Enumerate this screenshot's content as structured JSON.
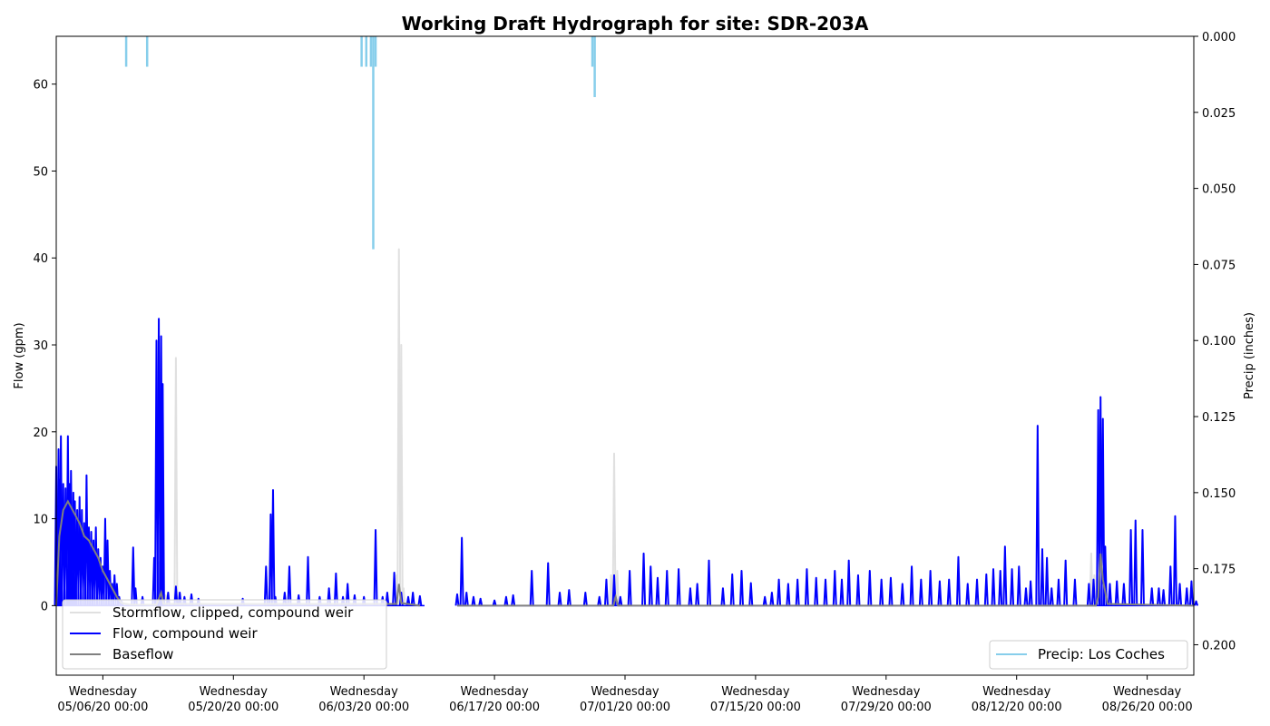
{
  "chart_data": {
    "type": "line",
    "title": "Working Draft Hydrograph for site: SDR-203A",
    "ylabel": "Flow (gpm)",
    "y2label": "Precip (inches)",
    "xlim": [
      "2020-05-01",
      "2020-08-31"
    ],
    "ylim": [
      -8,
      65.5
    ],
    "y2lim": [
      0.21,
      0.0
    ],
    "y2_inverted": true,
    "x_ticks": [
      {
        "date": "2020-05-06",
        "line1": "Wednesday",
        "line2": "05/06/20 00:00"
      },
      {
        "date": "2020-05-20",
        "line1": "Wednesday",
        "line2": "05/20/20 00:00"
      },
      {
        "date": "2020-06-03",
        "line1": "Wednesday",
        "line2": "06/03/20 00:00"
      },
      {
        "date": "2020-06-17",
        "line1": "Wednesday",
        "line2": "06/17/20 00:00"
      },
      {
        "date": "2020-07-01",
        "line1": "Wednesday",
        "line2": "07/01/20 00:00"
      },
      {
        "date": "2020-07-15",
        "line1": "Wednesday",
        "line2": "07/15/20 00:00"
      },
      {
        "date": "2020-07-29",
        "line1": "Wednesday",
        "line2": "07/29/20 00:00"
      },
      {
        "date": "2020-08-12",
        "line1": "Wednesday",
        "line2": "08/12/20 00:00"
      },
      {
        "date": "2020-08-26",
        "line1": "Wednesday",
        "line2": "08/26/20 00:00"
      }
    ],
    "y_ticks": [
      "0",
      "10",
      "20",
      "30",
      "40",
      "50",
      "60"
    ],
    "y2_ticks": [
      "0.000",
      "0.025",
      "0.050",
      "0.075",
      "0.100",
      "0.125",
      "0.150",
      "0.175",
      "0.200"
    ],
    "grid": false,
    "legend_left": {
      "placement": "lower-left",
      "entries": [
        "Stormflow, clipped, compound weir",
        "Flow, compound weir",
        "Baseflow"
      ]
    },
    "legend_right": {
      "placement": "lower-right",
      "entries": [
        "Precip: Los Coches"
      ]
    },
    "series": [
      {
        "name": "Stormflow, clipped, compound weir",
        "color": "#e0e0e0",
        "axis": "left",
        "spikes": [
          [
            "2020-05-11T12:00",
            0.5
          ],
          [
            "2020-05-12T00:00",
            5.0
          ],
          [
            "2020-05-12T06:00",
            28.5
          ],
          [
            "2020-05-12T10:00",
            25.0
          ],
          [
            "2020-05-12T18:00",
            1.2
          ],
          [
            "2020-05-13T20:00",
            28.5
          ],
          [
            "2020-05-14T04:00",
            1.5
          ],
          [
            "2020-06-06T12:00",
            3.5
          ],
          [
            "2020-06-06T18:00",
            41.0
          ],
          [
            "2020-06-07T00:00",
            30.0
          ],
          [
            "2020-06-07T06:00",
            2.0
          ],
          [
            "2020-06-29T12:00",
            3.5
          ],
          [
            "2020-06-29T20:00",
            17.5
          ],
          [
            "2020-06-30T04:00",
            4.0
          ],
          [
            "2020-08-19T18:00",
            2.0
          ],
          [
            "2020-08-20T00:00",
            6.0
          ],
          [
            "2020-08-20T08:00",
            3.5
          ]
        ]
      },
      {
        "name": "Flow, compound weir",
        "color": "#0000ff",
        "axis": "left",
        "gaps": [
          [
            "2020-06-09T12:00",
            "2020-06-13T00:00"
          ]
        ],
        "spikes": [
          [
            "2020-05-01T00:00",
            16.0
          ],
          [
            "2020-05-01T06:00",
            18.0
          ],
          [
            "2020-05-01T08:00",
            14.5
          ],
          [
            "2020-05-01T12:00",
            19.5
          ],
          [
            "2020-05-01T18:00",
            14.0
          ],
          [
            "2020-05-02T00:00",
            13.5
          ],
          [
            "2020-05-02T06:00",
            19.5
          ],
          [
            "2020-05-02T10:00",
            14.0
          ],
          [
            "2020-05-02T14:00",
            15.5
          ],
          [
            "2020-05-02T20:00",
            13.0
          ],
          [
            "2020-05-03T00:00",
            12.0
          ],
          [
            "2020-05-03T06:00",
            11.0
          ],
          [
            "2020-05-03T12:00",
            12.5
          ],
          [
            "2020-05-03T18:00",
            11.0
          ],
          [
            "2020-05-04T00:00",
            9.5
          ],
          [
            "2020-05-04T06:00",
            15.0
          ],
          [
            "2020-05-04T12:00",
            9.0
          ],
          [
            "2020-05-04T18:00",
            8.5
          ],
          [
            "2020-05-05T00:00",
            7.5
          ],
          [
            "2020-05-05T06:00",
            9.0
          ],
          [
            "2020-05-05T12:00",
            6.5
          ],
          [
            "2020-05-05T18:00",
            5.5
          ],
          [
            "2020-05-06T00:00",
            4.5
          ],
          [
            "2020-05-06T06:00",
            10.0
          ],
          [
            "2020-05-06T12:00",
            7.5
          ],
          [
            "2020-05-06T18:00",
            4.0
          ],
          [
            "2020-05-07T00:00",
            2.5
          ],
          [
            "2020-05-07T06:00",
            3.5
          ],
          [
            "2020-05-07T12:00",
            2.5
          ],
          [
            "2020-05-07T18:00",
            1.0
          ],
          [
            "2020-05-08T00:00",
            0.5
          ],
          [
            "2020-05-09T06:00",
            6.7
          ],
          [
            "2020-05-09T12:00",
            2.0
          ],
          [
            "2020-05-10T06:00",
            1.0
          ],
          [
            "2020-05-11T12:00",
            5.5
          ],
          [
            "2020-05-11T18:00",
            30.5
          ],
          [
            "2020-05-12T00:00",
            33.0
          ],
          [
            "2020-05-12T06:00",
            31.0
          ],
          [
            "2020-05-12T10:00",
            25.5
          ],
          [
            "2020-05-13T00:00",
            1.5
          ],
          [
            "2020-05-13T20:00",
            2.2
          ],
          [
            "2020-05-14T06:00",
            1.5
          ],
          [
            "2020-05-14T18:00",
            1.0
          ],
          [
            "2020-05-15T12:00",
            1.3
          ],
          [
            "2020-05-16T06:00",
            0.8
          ],
          [
            "2020-05-21T00:00",
            0.8
          ],
          [
            "2020-05-23T12:00",
            4.5
          ],
          [
            "2020-05-24T00:00",
            10.5
          ],
          [
            "2020-05-24T06:00",
            13.3
          ],
          [
            "2020-05-24T12:00",
            1.0
          ],
          [
            "2020-05-25T12:00",
            1.5
          ],
          [
            "2020-05-26T00:00",
            4.5
          ],
          [
            "2020-05-27T00:00",
            1.2
          ],
          [
            "2020-05-28T00:00",
            5.6
          ],
          [
            "2020-05-29T06:00",
            1.0
          ],
          [
            "2020-05-30T06:00",
            2.0
          ],
          [
            "2020-05-31T00:00",
            3.7
          ],
          [
            "2020-05-31T18:00",
            1.0
          ],
          [
            "2020-06-01T06:00",
            2.5
          ],
          [
            "2020-06-02T00:00",
            1.2
          ],
          [
            "2020-06-03T00:00",
            1.0
          ],
          [
            "2020-06-04T06:00",
            8.7
          ],
          [
            "2020-06-05T00:00",
            1.0
          ],
          [
            "2020-06-05T12:00",
            1.5
          ],
          [
            "2020-06-06T06:00",
            3.8
          ],
          [
            "2020-06-07T00:00",
            1.5
          ],
          [
            "2020-06-07T18:00",
            1.0
          ],
          [
            "2020-06-08T06:00",
            1.5
          ],
          [
            "2020-06-09T00:00",
            1.1
          ],
          [
            "2020-06-13T00:00",
            1.3
          ],
          [
            "2020-06-13T12:00",
            7.8
          ],
          [
            "2020-06-14T00:00",
            1.5
          ],
          [
            "2020-06-14T18:00",
            1.0
          ],
          [
            "2020-06-15T12:00",
            0.8
          ],
          [
            "2020-06-17T00:00",
            0.6
          ],
          [
            "2020-06-18T06:00",
            1.0
          ],
          [
            "2020-06-19T00:00",
            1.2
          ],
          [
            "2020-06-21T00:00",
            4.0
          ],
          [
            "2020-06-22T18:00",
            4.9
          ],
          [
            "2020-06-24T00:00",
            1.5
          ],
          [
            "2020-06-25T00:00",
            1.8
          ],
          [
            "2020-06-26T18:00",
            1.5
          ],
          [
            "2020-06-28T06:00",
            1.0
          ],
          [
            "2020-06-29T00:00",
            3.0
          ],
          [
            "2020-06-29T20:00",
            3.5
          ],
          [
            "2020-06-30T12:00",
            1.0
          ],
          [
            "2020-07-01T12:00",
            4.0
          ],
          [
            "2020-07-03T00:00",
            6.0
          ],
          [
            "2020-07-03T18:00",
            4.5
          ],
          [
            "2020-07-04T12:00",
            3.2
          ],
          [
            "2020-07-05T12:00",
            4.0
          ],
          [
            "2020-07-06T18:00",
            4.2
          ],
          [
            "2020-07-08T00:00",
            2.0
          ],
          [
            "2020-07-08T18:00",
            2.5
          ],
          [
            "2020-07-10T00:00",
            5.2
          ],
          [
            "2020-07-11T12:00",
            2.0
          ],
          [
            "2020-07-12T12:00",
            3.6
          ],
          [
            "2020-07-13T12:00",
            4.0
          ],
          [
            "2020-07-14T12:00",
            2.6
          ],
          [
            "2020-07-16T00:00",
            1.0
          ],
          [
            "2020-07-16T18:00",
            1.5
          ],
          [
            "2020-07-17T12:00",
            3.0
          ],
          [
            "2020-07-18T12:00",
            2.5
          ],
          [
            "2020-07-19T12:00",
            3.0
          ],
          [
            "2020-07-20T12:00",
            4.2
          ],
          [
            "2020-07-21T12:00",
            3.2
          ],
          [
            "2020-07-22T12:00",
            3.0
          ],
          [
            "2020-07-23T12:00",
            4.0
          ],
          [
            "2020-07-24T06:00",
            3.0
          ],
          [
            "2020-07-25T00:00",
            5.2
          ],
          [
            "2020-07-26T00:00",
            3.5
          ],
          [
            "2020-07-27T06:00",
            4.0
          ],
          [
            "2020-07-28T12:00",
            3.0
          ],
          [
            "2020-07-29T12:00",
            3.2
          ],
          [
            "2020-07-30T18:00",
            2.5
          ],
          [
            "2020-07-31T18:00",
            4.5
          ],
          [
            "2020-08-01T18:00",
            3.0
          ],
          [
            "2020-08-02T18:00",
            4.0
          ],
          [
            "2020-08-03T18:00",
            2.8
          ],
          [
            "2020-08-04T18:00",
            3.0
          ],
          [
            "2020-08-05T18:00",
            5.6
          ],
          [
            "2020-08-06T18:00",
            2.5
          ],
          [
            "2020-08-07T18:00",
            3.0
          ],
          [
            "2020-08-08T18:00",
            3.6
          ],
          [
            "2020-08-09T12:00",
            4.2
          ],
          [
            "2020-08-10T06:00",
            4.0
          ],
          [
            "2020-08-10T18:00",
            6.8
          ],
          [
            "2020-08-11T12:00",
            4.2
          ],
          [
            "2020-08-12T06:00",
            4.5
          ],
          [
            "2020-08-13T00:00",
            2.0
          ],
          [
            "2020-08-13T12:00",
            2.8
          ],
          [
            "2020-08-14T06:00",
            20.7
          ],
          [
            "2020-08-14T18:00",
            6.5
          ],
          [
            "2020-08-15T06:00",
            5.5
          ],
          [
            "2020-08-15T18:00",
            2.0
          ],
          [
            "2020-08-16T12:00",
            3.0
          ],
          [
            "2020-08-17T06:00",
            5.2
          ],
          [
            "2020-08-18T06:00",
            3.0
          ],
          [
            "2020-08-19T18:00",
            2.5
          ],
          [
            "2020-08-20T06:00",
            3.0
          ],
          [
            "2020-08-20T18:00",
            22.5
          ],
          [
            "2020-08-21T00:00",
            24.0
          ],
          [
            "2020-08-21T06:00",
            21.5
          ],
          [
            "2020-08-21T12:00",
            6.8
          ],
          [
            "2020-08-22T00:00",
            2.5
          ],
          [
            "2020-08-22T18:00",
            2.8
          ],
          [
            "2020-08-23T12:00",
            2.5
          ],
          [
            "2020-08-24T06:00",
            8.7
          ],
          [
            "2020-08-24T18:00",
            9.8
          ],
          [
            "2020-08-25T12:00",
            8.7
          ],
          [
            "2020-08-26T12:00",
            2.0
          ],
          [
            "2020-08-27T06:00",
            2.0
          ],
          [
            "2020-08-27T18:00",
            1.8
          ],
          [
            "2020-08-28T12:00",
            4.5
          ],
          [
            "2020-08-29T00:00",
            10.3
          ],
          [
            "2020-08-29T12:00",
            2.5
          ],
          [
            "2020-08-30T06:00",
            2.0
          ],
          [
            "2020-08-30T18:00",
            2.8
          ],
          [
            "2020-08-31T06:00",
            0.5
          ]
        ]
      },
      {
        "name": "Baseflow",
        "color": "#808080",
        "axis": "left",
        "gaps": [
          [
            "2020-06-09T12:00",
            "2020-06-13T00:00"
          ]
        ],
        "points": [
          [
            "2020-05-01T00:00",
            0
          ],
          [
            "2020-05-01T08:00",
            8.0
          ],
          [
            "2020-05-01T18:00",
            11.0
          ],
          [
            "2020-05-02T06:00",
            12.0
          ],
          [
            "2020-05-02T12:00",
            11.5
          ],
          [
            "2020-05-03T00:00",
            10.5
          ],
          [
            "2020-05-03T12:00",
            9.5
          ],
          [
            "2020-05-04T00:00",
            8.0
          ],
          [
            "2020-05-04T12:00",
            7.5
          ],
          [
            "2020-05-05T00:00",
            6.5
          ],
          [
            "2020-05-05T12:00",
            5.5
          ],
          [
            "2020-05-06T00:00",
            4.0
          ],
          [
            "2020-05-06T12:00",
            3.0
          ],
          [
            "2020-05-07T00:00",
            2.0
          ],
          [
            "2020-05-07T12:00",
            1.0
          ],
          [
            "2020-05-08T00:00",
            0.3
          ],
          [
            "2020-05-09T00:00",
            0.1
          ],
          [
            "2020-05-11T18:00",
            0.1
          ],
          [
            "2020-05-12T06:00",
            1.5
          ],
          [
            "2020-05-12T12:00",
            0.2
          ],
          [
            "2020-06-06T12:00",
            0.2
          ],
          [
            "2020-06-06T18:00",
            2.5
          ],
          [
            "2020-06-07T00:00",
            0.3
          ],
          [
            "2020-06-09T00:00",
            0.0
          ],
          [
            "2020-06-13T00:00",
            0.0
          ],
          [
            "2020-06-29T18:00",
            0.0
          ],
          [
            "2020-06-30T00:00",
            1.0
          ],
          [
            "2020-06-30T06:00",
            0.0
          ],
          [
            "2020-08-20T12:00",
            0.0
          ],
          [
            "2020-08-20T18:00",
            1.0
          ],
          [
            "2020-08-21T00:00",
            6.0
          ],
          [
            "2020-08-21T06:00",
            3.0
          ],
          [
            "2020-08-21T18:00",
            0.2
          ],
          [
            "2020-08-31T00:00",
            0.0
          ]
        ]
      },
      {
        "name": "Precip: Los Coches",
        "color": "#87ceeb",
        "axis": "right",
        "bars": [
          [
            "2020-05-08T12:00",
            0.01
          ],
          [
            "2020-05-10T18:00",
            0.01
          ],
          [
            "2020-06-02T18:00",
            0.01
          ],
          [
            "2020-06-03T06:00",
            0.01
          ],
          [
            "2020-06-03T18:00",
            0.01
          ],
          [
            "2020-06-04T00:00",
            0.07
          ],
          [
            "2020-06-04T06:00",
            0.01
          ],
          [
            "2020-06-27T12:00",
            0.01
          ],
          [
            "2020-06-27T18:00",
            0.02
          ]
        ]
      }
    ]
  }
}
